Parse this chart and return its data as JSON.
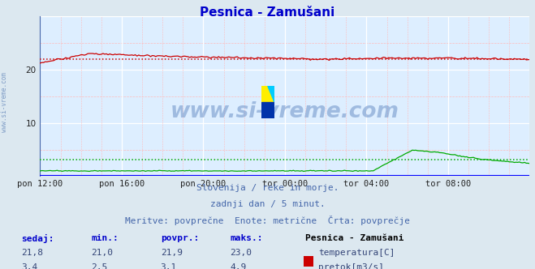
{
  "title": "Pesnica - Zamušani",
  "bg_color": "#dce8f0",
  "plot_bg_color": "#ddeeff",
  "grid_color": "#ffffff",
  "minor_grid_color": "#ffbbbb",
  "x_labels": [
    "pon 12:00",
    "pon 16:00",
    "pon 20:00",
    "tor 00:00",
    "tor 04:00",
    "tor 08:00"
  ],
  "n_points": 289,
  "y_min": 0,
  "y_max": 30,
  "y_ticks": [
    10,
    20
  ],
  "temp_color": "#cc0000",
  "flow_color": "#00aa00",
  "avg_temp": 21.9,
  "avg_flow": 3.1,
  "temp_min": 21.0,
  "temp_max": 23.0,
  "temp_current": 21.8,
  "flow_min": 2.5,
  "flow_max": 4.9,
  "flow_current": 3.4,
  "subtitle1": "Slovenija / reke in morje.",
  "subtitle2": "zadnji dan / 5 minut.",
  "subtitle3": "Meritve: povprečne  Enote: metrične  Črta: povprečje",
  "watermark": "www.si-vreme.com",
  "left_label": "www.si-vreme.com",
  "station_label": "Pesnica - Zamušani",
  "logo_colors": [
    "#ffee00",
    "#00aaee",
    "#0033aa"
  ],
  "border_color": "#0000cc",
  "text_color": "#4466aa",
  "label_color": "#0000cc",
  "value_color": "#334477"
}
